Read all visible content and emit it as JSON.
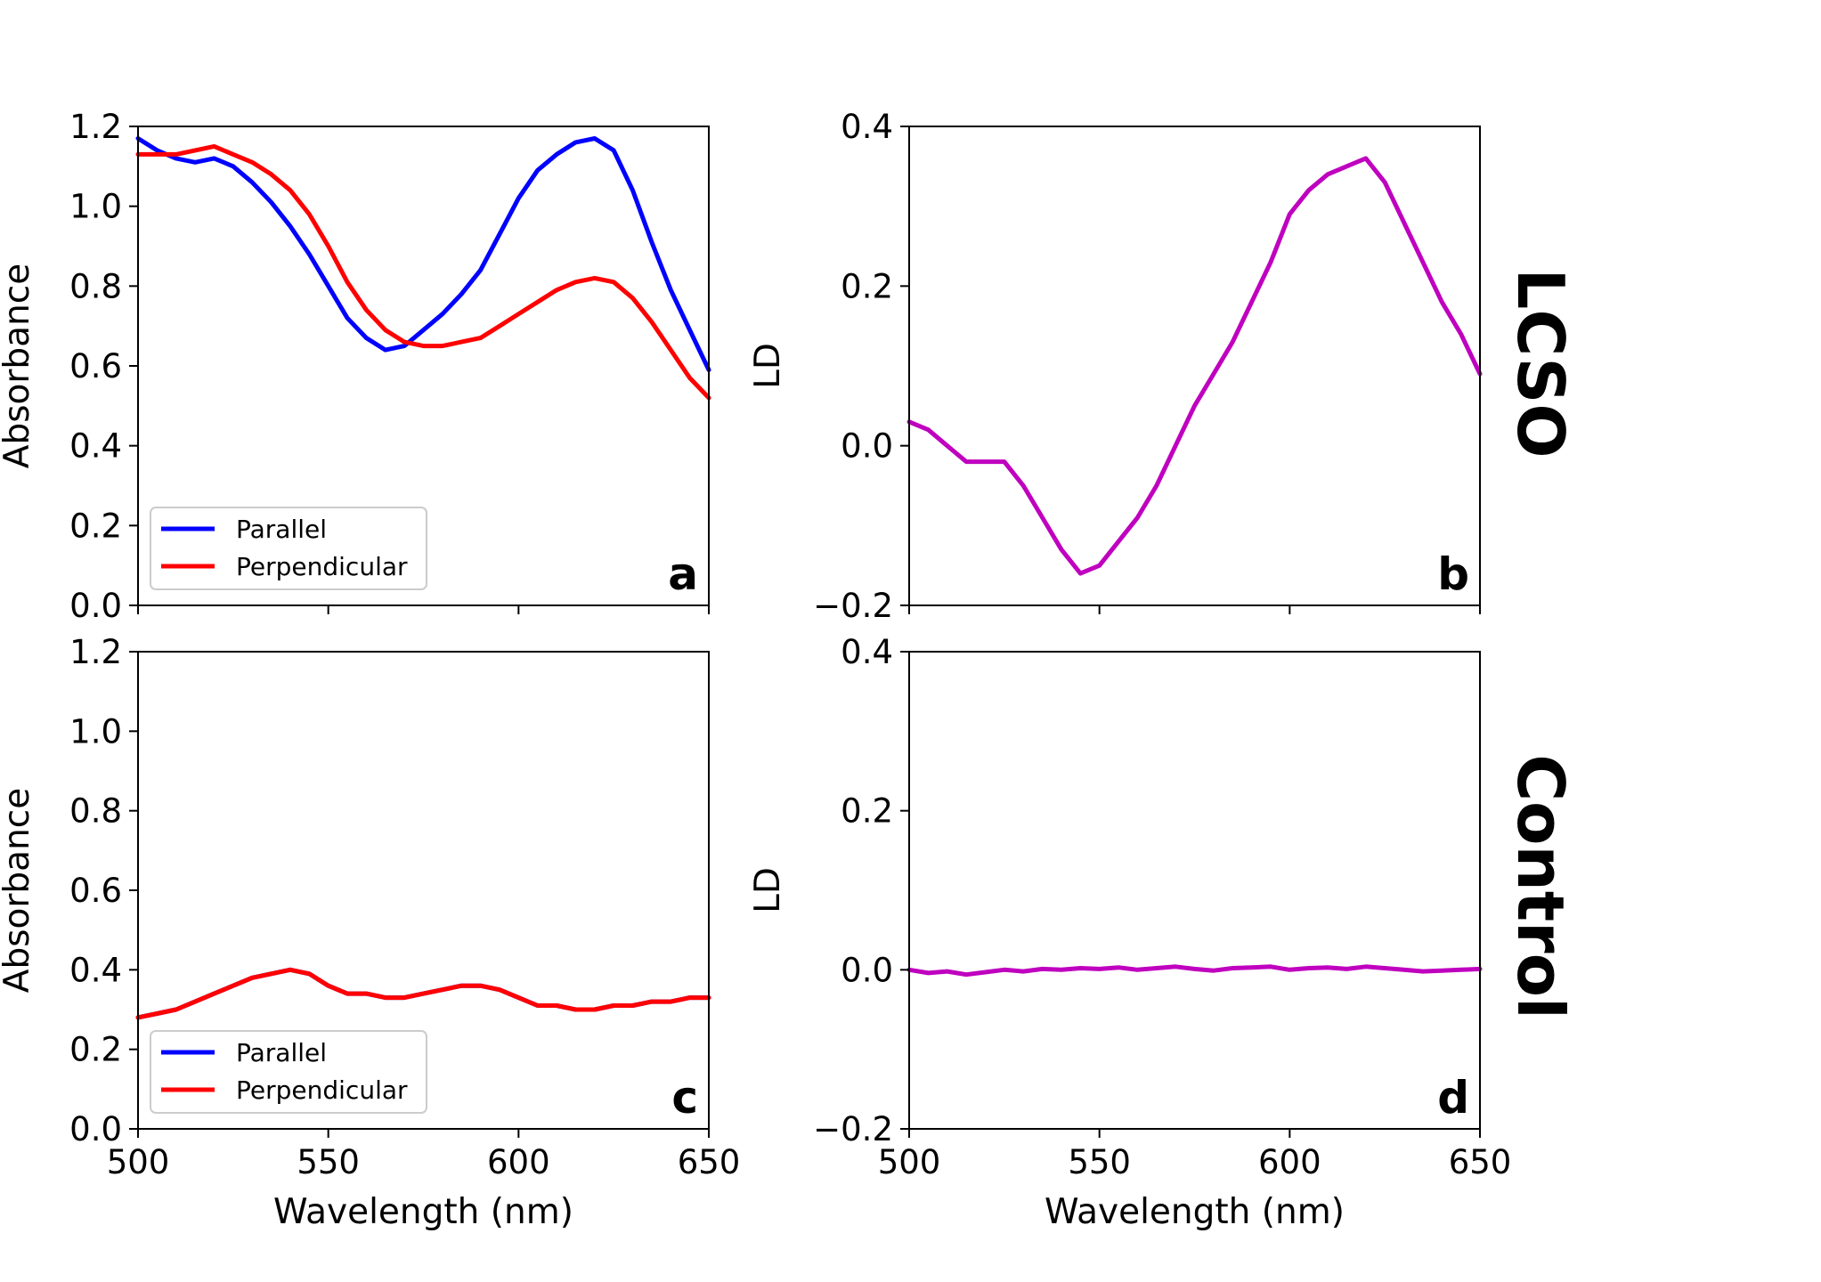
{
  "colors": {
    "parallel": "#0000ff",
    "perpendicular": "#ff0000",
    "ld": "#bf00bf",
    "axis": "#000000"
  },
  "row_labels": [
    "LCSO",
    "Control"
  ],
  "chart_data": [
    {
      "id": "a",
      "type": "line",
      "panel_letter": "a",
      "xlabel": "",
      "ylabel": "Absorbance",
      "xlim": [
        500,
        650
      ],
      "ylim": [
        0.0,
        1.2
      ],
      "xticks": [
        500,
        550,
        600,
        650
      ],
      "xtick_labels": [
        "",
        "",
        "",
        ""
      ],
      "yticks": [
        0.0,
        0.2,
        0.4,
        0.6,
        0.8,
        1.0,
        1.2
      ],
      "ytick_labels": [
        "0.0",
        "0.2",
        "0.4",
        "0.6",
        "0.8",
        "1.0",
        "1.2"
      ],
      "grid": false,
      "legend": "lower-left",
      "series": [
        {
          "name": "Parallel",
          "color": "#0000ff",
          "x": [
            500,
            505,
            510,
            515,
            520,
            525,
            530,
            535,
            540,
            545,
            550,
            555,
            560,
            565,
            570,
            575,
            580,
            585,
            590,
            595,
            600,
            605,
            610,
            615,
            620,
            625,
            630,
            635,
            640,
            645,
            650
          ],
          "y": [
            1.17,
            1.14,
            1.12,
            1.11,
            1.12,
            1.1,
            1.06,
            1.01,
            0.95,
            0.88,
            0.8,
            0.72,
            0.67,
            0.64,
            0.65,
            0.69,
            0.73,
            0.78,
            0.84,
            0.93,
            1.02,
            1.09,
            1.13,
            1.16,
            1.17,
            1.14,
            1.04,
            0.91,
            0.79,
            0.69,
            0.59
          ]
        },
        {
          "name": "Perpendicular",
          "color": "#ff0000",
          "x": [
            500,
            505,
            510,
            515,
            520,
            525,
            530,
            535,
            540,
            545,
            550,
            555,
            560,
            565,
            570,
            575,
            580,
            585,
            590,
            595,
            600,
            605,
            610,
            615,
            620,
            625,
            630,
            635,
            640,
            645,
            650
          ],
          "y": [
            1.13,
            1.13,
            1.13,
            1.14,
            1.15,
            1.13,
            1.11,
            1.08,
            1.04,
            0.98,
            0.9,
            0.81,
            0.74,
            0.69,
            0.66,
            0.65,
            0.65,
            0.66,
            0.67,
            0.7,
            0.73,
            0.76,
            0.79,
            0.81,
            0.82,
            0.81,
            0.77,
            0.71,
            0.64,
            0.57,
            0.52
          ]
        }
      ]
    },
    {
      "id": "b",
      "type": "line",
      "panel_letter": "b",
      "xlabel": "",
      "ylabel": "LD",
      "xlim": [
        500,
        650
      ],
      "ylim": [
        -0.2,
        0.4
      ],
      "xticks": [
        500,
        550,
        600,
        650
      ],
      "xtick_labels": [
        "",
        "",
        "",
        ""
      ],
      "yticks": [
        -0.2,
        0.0,
        0.2,
        0.4
      ],
      "ytick_labels": [
        "−0.2",
        "0.0",
        "0.2",
        "0.4"
      ],
      "grid": false,
      "legend": "none",
      "series": [
        {
          "color": "#bf00bf",
          "x": [
            500,
            505,
            510,
            515,
            520,
            525,
            530,
            535,
            540,
            545,
            550,
            555,
            560,
            565,
            570,
            575,
            580,
            585,
            590,
            595,
            600,
            605,
            610,
            615,
            620,
            625,
            630,
            635,
            640,
            645,
            650
          ],
          "y": [
            0.03,
            0.02,
            0.0,
            -0.02,
            -0.02,
            -0.02,
            -0.05,
            -0.09,
            -0.13,
            -0.16,
            -0.15,
            -0.12,
            -0.09,
            -0.05,
            0.0,
            0.05,
            0.09,
            0.13,
            0.18,
            0.23,
            0.29,
            0.32,
            0.34,
            0.35,
            0.36,
            0.33,
            0.28,
            0.23,
            0.18,
            0.14,
            0.09
          ]
        }
      ]
    },
    {
      "id": "c",
      "type": "line",
      "panel_letter": "c",
      "xlabel": "Wavelength (nm)",
      "ylabel": "Absorbance",
      "xlim": [
        500,
        650
      ],
      "ylim": [
        0.0,
        1.2
      ],
      "xticks": [
        500,
        550,
        600,
        650
      ],
      "xtick_labels": [
        "500",
        "550",
        "600",
        "650"
      ],
      "yticks": [
        0.0,
        0.2,
        0.4,
        0.6,
        0.8,
        1.0,
        1.2
      ],
      "ytick_labels": [
        "0.0",
        "0.2",
        "0.4",
        "0.6",
        "0.8",
        "1.0",
        "1.2"
      ],
      "grid": false,
      "legend": "lower-left",
      "series": [
        {
          "name": "Parallel",
          "color": "#0000ff",
          "x": [
            500,
            505,
            510,
            515,
            520,
            525,
            530,
            535,
            540,
            545,
            550,
            555,
            560,
            565,
            570,
            575,
            580,
            585,
            590,
            595,
            600,
            605,
            610,
            615,
            620,
            625,
            630,
            635,
            640,
            645,
            650
          ],
          "y": [
            0.28,
            0.29,
            0.3,
            0.32,
            0.34,
            0.36,
            0.38,
            0.39,
            0.4,
            0.39,
            0.36,
            0.34,
            0.34,
            0.33,
            0.33,
            0.34,
            0.35,
            0.36,
            0.36,
            0.35,
            0.33,
            0.31,
            0.31,
            0.3,
            0.3,
            0.31,
            0.31,
            0.32,
            0.32,
            0.33,
            0.33
          ]
        },
        {
          "name": "Perpendicular",
          "color": "#ff0000",
          "x": [
            500,
            505,
            510,
            515,
            520,
            525,
            530,
            535,
            540,
            545,
            550,
            555,
            560,
            565,
            570,
            575,
            580,
            585,
            590,
            595,
            600,
            605,
            610,
            615,
            620,
            625,
            630,
            635,
            640,
            645,
            650
          ],
          "y": [
            0.28,
            0.29,
            0.3,
            0.32,
            0.34,
            0.36,
            0.38,
            0.39,
            0.4,
            0.39,
            0.36,
            0.34,
            0.34,
            0.33,
            0.33,
            0.34,
            0.35,
            0.36,
            0.36,
            0.35,
            0.33,
            0.31,
            0.31,
            0.3,
            0.3,
            0.31,
            0.31,
            0.32,
            0.32,
            0.33,
            0.33
          ]
        }
      ]
    },
    {
      "id": "d",
      "type": "line",
      "panel_letter": "d",
      "xlabel": "Wavelength (nm)",
      "ylabel": "LD",
      "xlim": [
        500,
        650
      ],
      "ylim": [
        -0.2,
        0.4
      ],
      "xticks": [
        500,
        550,
        600,
        650
      ],
      "xtick_labels": [
        "500",
        "550",
        "600",
        "650"
      ],
      "yticks": [
        -0.2,
        0.0,
        0.2,
        0.4
      ],
      "ytick_labels": [
        "−0.2",
        "0.0",
        "0.2",
        "0.4"
      ],
      "grid": false,
      "legend": "none",
      "series": [
        {
          "color": "#bf00bf",
          "x": [
            500,
            505,
            510,
            515,
            520,
            525,
            530,
            535,
            540,
            545,
            550,
            555,
            560,
            565,
            570,
            575,
            580,
            585,
            590,
            595,
            600,
            605,
            610,
            615,
            620,
            625,
            630,
            635,
            640,
            645,
            650
          ],
          "y": [
            0.0,
            -0.004,
            -0.002,
            -0.006,
            -0.003,
            0.0,
            -0.002,
            0.001,
            0.0,
            0.002,
            0.001,
            0.003,
            0.0,
            0.002,
            0.004,
            0.001,
            -0.001,
            0.002,
            0.003,
            0.004,
            0.0,
            0.002,
            0.003,
            0.001,
            0.004,
            0.002,
            0.0,
            -0.002,
            -0.001,
            0.0,
            0.001
          ]
        }
      ]
    }
  ]
}
